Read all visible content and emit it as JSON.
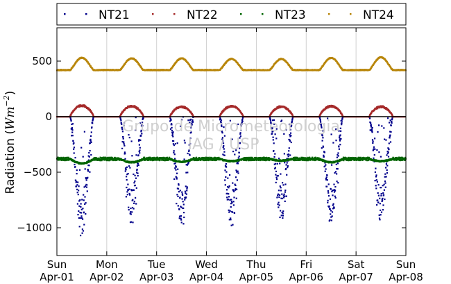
{
  "chart_data": {
    "type": "scatter",
    "title": "",
    "ylabel": "Radiation (Wm⁻²)",
    "ylabel_parts": {
      "text": "Radiation (",
      "math": "Wm",
      "exp": "−2",
      "close": ")"
    },
    "xlabel": "",
    "ylim": [
      -1250,
      800
    ],
    "yticks": [
      500,
      0,
      -500,
      -1000
    ],
    "ytick_labels": [
      "500",
      "0",
      "−500",
      "−1000"
    ],
    "xlim": [
      "2012-04-01T00:00",
      "2012-04-08T00:00"
    ],
    "xticks": [
      {
        "day": "Sun",
        "date": "Apr-01"
      },
      {
        "day": "Mon",
        "date": "Apr-02"
      },
      {
        "day": "Tue",
        "date": "Apr-03"
      },
      {
        "day": "Wed",
        "date": "Apr-04"
      },
      {
        "day": "Thu",
        "date": "Apr-05"
      },
      {
        "day": "Fri",
        "date": "Apr-06"
      },
      {
        "day": "Sat",
        "date": "Apr-07"
      },
      {
        "day": "Sun",
        "date": "Apr-08"
      }
    ],
    "grid": "vertical",
    "legend_position": "top",
    "watermark": [
      "Grupo de Micrometeorologia",
      "IAG / USP"
    ],
    "series": [
      {
        "name": "NT21",
        "color": "#00008b",
        "night_value": 0,
        "daily_peak": [
          -1100,
          -980,
          -1030,
          -1000,
          -940,
          -980,
          -950
        ],
        "noise": 0.35
      },
      {
        "name": "NT22",
        "color": "#a52a2a",
        "night_value": 0,
        "daily_peak": [
          110,
          105,
          100,
          105,
          100,
          105,
          100
        ],
        "noise": 0.12
      },
      {
        "name": "NT23",
        "color": "#006400",
        "night_value": -380,
        "daily_peak": [
          -420,
          -410,
          -405,
          -400,
          -395,
          -410,
          -400
        ],
        "noise": 20
      },
      {
        "name": "NT24",
        "color": "#b8860b",
        "night_value": 420,
        "daily_peak": [
          530,
          525,
          525,
          520,
          520,
          530,
          535
        ],
        "noise": 8
      }
    ]
  }
}
